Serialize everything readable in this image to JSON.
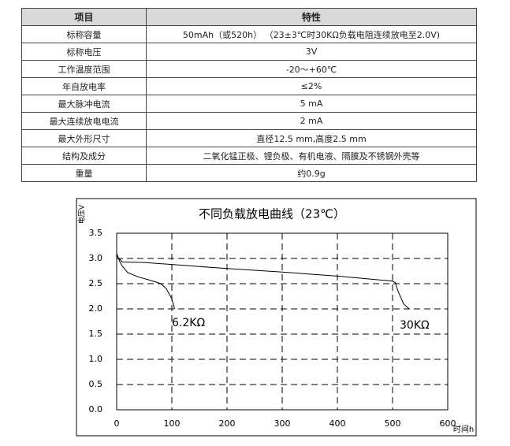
{
  "table": {
    "header": [
      "项目",
      "特性"
    ],
    "rows": [
      [
        "标称容量",
        "50mAh（或520h）  （23±3℃时30KΩ负载电阻连续放电至2.0V)"
      ],
      [
        "标称电压",
        "3V"
      ],
      [
        "工作温度范围",
        "-20～+60℃"
      ],
      [
        "年自放电率",
        "≤2%"
      ],
      [
        "最大脉冲电流",
        "5 mA"
      ],
      [
        "最大连续放电电流",
        "2  mA"
      ],
      [
        "最大外形尺寸",
        "直径12.5 mm,高度2.5 mm"
      ],
      [
        "结构及成分",
        "二氧化锰正极、锂负极、有机电液、隔膜及不锈钢外壳等"
      ],
      [
        "重量",
        "约0.9g"
      ]
    ]
  },
  "chart_data": {
    "type": "line",
    "title": "不同负载放电曲线（23℃）",
    "y_label": "电压V",
    "x_label": "时间h",
    "xlim": [
      0,
      600
    ],
    "xticks": [
      0,
      100,
      200,
      300,
      400,
      500,
      600
    ],
    "ylim": [
      0,
      3.5
    ],
    "yticks": [
      {
        "value": 0,
        "label": "0.0"
      },
      0.5,
      {
        "value": 1,
        "label": "1.0"
      },
      1.5,
      {
        "value": 2,
        "label": "2.0"
      },
      2.5,
      {
        "value": 3,
        "label": "3.0"
      },
      3.5
    ],
    "grid": true,
    "series": [
      {
        "name": "6.2KΩ",
        "color": "#000000",
        "x": [
          0,
          5,
          10,
          20,
          40,
          60,
          80,
          90,
          100,
          105
        ],
        "values": [
          3.1,
          2.95,
          2.85,
          2.72,
          2.63,
          2.57,
          2.5,
          2.4,
          2.2,
          2.0
        ]
      },
      {
        "name": "30KΩ",
        "color": "#000000",
        "x": [
          0,
          10,
          50,
          100,
          200,
          300,
          400,
          500,
          505,
          510,
          520,
          530
        ],
        "values": [
          3.05,
          2.93,
          2.92,
          2.88,
          2.8,
          2.73,
          2.65,
          2.55,
          2.52,
          2.35,
          2.1,
          2.0
        ]
      }
    ]
  }
}
